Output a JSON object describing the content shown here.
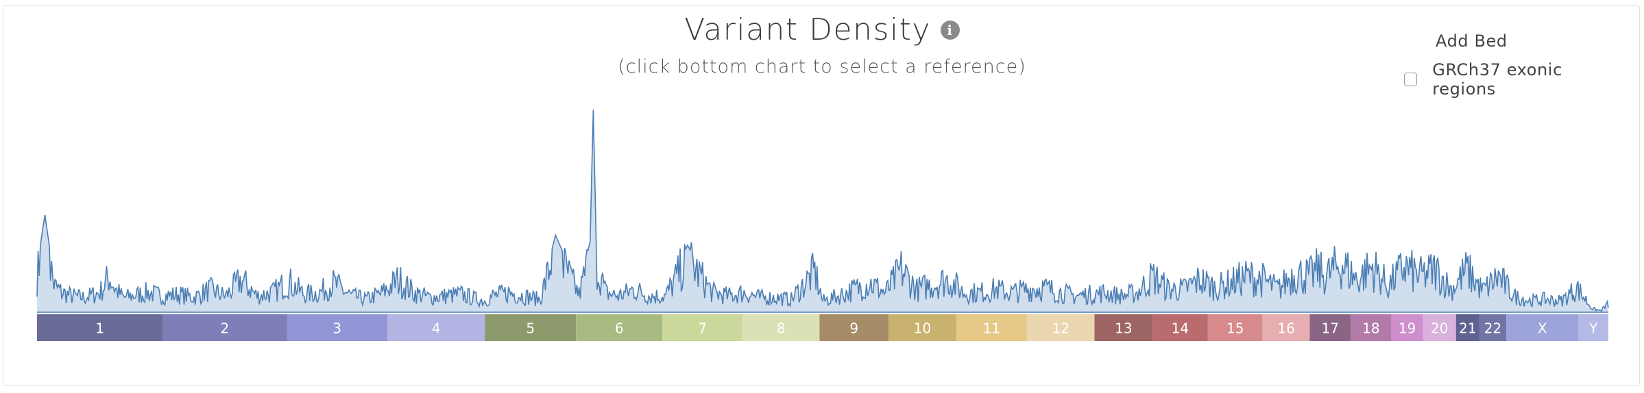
{
  "header": {
    "title": "Variant Density",
    "info_icon": "info-circle-icon",
    "subtitle": "(click bottom chart to select a reference)"
  },
  "bed_panel": {
    "title": "Add Bed",
    "options": [
      {
        "label": "GRCh37 exonic regions",
        "checked": false
      }
    ]
  },
  "chart_data": {
    "type": "area",
    "title": "Variant Density",
    "subtitle": "(click bottom chart to select a reference)",
    "line_color": "#4a7db3",
    "fill_color": "#a9c3e0",
    "grid": false,
    "references": [
      {
        "name": "1",
        "color": "#6a6c97",
        "span": [
          0.0,
          0.08
        ]
      },
      {
        "name": "2",
        "color": "#7e7eb8",
        "span": [
          0.08,
          0.159
        ]
      },
      {
        "name": "3",
        "color": "#9296d6",
        "span": [
          0.159,
          0.223
        ]
      },
      {
        "name": "4",
        "color": "#b3b4e3",
        "span": [
          0.223,
          0.285
        ]
      },
      {
        "name": "5",
        "color": "#8d9b6c",
        "span": [
          0.285,
          0.343
        ]
      },
      {
        "name": "6",
        "color": "#a7ba82",
        "span": [
          0.343,
          0.398
        ]
      },
      {
        "name": "7",
        "color": "#cbd89b",
        "span": [
          0.398,
          0.449
        ]
      },
      {
        "name": "8",
        "color": "#dbe1b6",
        "span": [
          0.449,
          0.498
        ]
      },
      {
        "name": "9",
        "color": "#a68b68",
        "span": [
          0.498,
          0.542
        ]
      },
      {
        "name": "10",
        "color": "#c9b16f",
        "span": [
          0.542,
          0.585
        ]
      },
      {
        "name": "11",
        "color": "#e6c887",
        "span": [
          0.585,
          0.63
        ]
      },
      {
        "name": "12",
        "color": "#ead7b0",
        "span": [
          0.63,
          0.673
        ]
      },
      {
        "name": "13",
        "color": "#9c6463",
        "span": [
          0.673,
          0.71
        ]
      },
      {
        "name": "14",
        "color": "#b96b6e",
        "span": [
          0.71,
          0.745
        ]
      },
      {
        "name": "15",
        "color": "#d68a8b",
        "span": [
          0.745,
          0.78
        ]
      },
      {
        "name": "16",
        "color": "#e6aeb0",
        "span": [
          0.78,
          0.81
        ]
      },
      {
        "name": "17",
        "color": "#8a6585",
        "span": [
          0.81,
          0.836
        ]
      },
      {
        "name": "18",
        "color": "#b27aa8",
        "span": [
          0.836,
          0.862
        ]
      },
      {
        "name": "19",
        "color": "#cf8fcd",
        "span": [
          0.862,
          0.882
        ]
      },
      {
        "name": "20",
        "color": "#dab1dc",
        "span": [
          0.882,
          0.903
        ]
      },
      {
        "name": "21",
        "color": "#5f6190",
        "span": [
          0.903,
          0.918
        ]
      },
      {
        "name": "22",
        "color": "#7175a6",
        "span": [
          0.918,
          0.935
        ]
      },
      {
        "name": "X",
        "color": "#9ca4db",
        "span": [
          0.935,
          0.981
        ]
      },
      {
        "name": "Y",
        "color": "#b4b9e6",
        "span": [
          0.981,
          1.0
        ]
      }
    ],
    "ylim": [
      0,
      1
    ],
    "x": [
      0,
      0.005,
      0.011,
      0.016,
      0.022,
      0.03,
      0.04,
      0.046,
      0.05,
      0.055,
      0.06,
      0.07,
      0.08,
      0.09,
      0.1,
      0.11,
      0.12,
      0.13,
      0.14,
      0.15,
      0.16,
      0.17,
      0.18,
      0.188,
      0.2,
      0.21,
      0.22,
      0.23,
      0.24,
      0.25,
      0.26,
      0.27,
      0.28,
      0.285,
      0.29,
      0.3,
      0.31,
      0.32,
      0.33,
      0.345,
      0.352,
      0.354,
      0.356,
      0.362,
      0.37,
      0.38,
      0.39,
      0.4,
      0.414,
      0.43,
      0.44,
      0.45,
      0.46,
      0.47,
      0.48,
      0.495,
      0.5,
      0.51,
      0.52,
      0.53,
      0.54,
      0.55,
      0.56,
      0.58,
      0.59,
      0.6,
      0.61,
      0.62,
      0.63,
      0.64,
      0.66,
      0.68,
      0.69,
      0.7,
      0.71,
      0.72,
      0.73,
      0.74,
      0.75,
      0.76,
      0.77,
      0.78,
      0.79,
      0.8,
      0.81,
      0.815,
      0.82,
      0.83,
      0.84,
      0.85,
      0.86,
      0.87,
      0.88,
      0.89,
      0.9,
      0.91,
      0.92,
      0.93,
      0.94,
      0.95,
      0.96,
      0.97,
      0.98,
      0.99,
      0.995,
      1.0
    ],
    "y": [
      0.22,
      0.48,
      0.16,
      0.12,
      0.1,
      0.09,
      0.12,
      0.22,
      0.14,
      0.09,
      0.1,
      0.12,
      0.1,
      0.11,
      0.09,
      0.14,
      0.1,
      0.2,
      0.1,
      0.12,
      0.19,
      0.11,
      0.12,
      0.18,
      0.1,
      0.08,
      0.12,
      0.2,
      0.12,
      0.09,
      0.1,
      0.11,
      0.08,
      0.07,
      0.1,
      0.12,
      0.1,
      0.08,
      0.38,
      0.11,
      0.35,
      1.0,
      0.3,
      0.12,
      0.1,
      0.14,
      0.1,
      0.1,
      0.33,
      0.12,
      0.1,
      0.12,
      0.09,
      0.09,
      0.08,
      0.25,
      0.07,
      0.1,
      0.14,
      0.18,
      0.12,
      0.26,
      0.14,
      0.2,
      0.12,
      0.12,
      0.14,
      0.12,
      0.14,
      0.15,
      0.1,
      0.12,
      0.1,
      0.12,
      0.22,
      0.14,
      0.14,
      0.2,
      0.15,
      0.18,
      0.22,
      0.2,
      0.14,
      0.24,
      0.22,
      0.26,
      0.22,
      0.3,
      0.2,
      0.28,
      0.16,
      0.28,
      0.22,
      0.26,
      0.14,
      0.26,
      0.13,
      0.22,
      0.1,
      0.07,
      0.08,
      0.07,
      0.15,
      0.02,
      0.01,
      0.05
    ]
  }
}
